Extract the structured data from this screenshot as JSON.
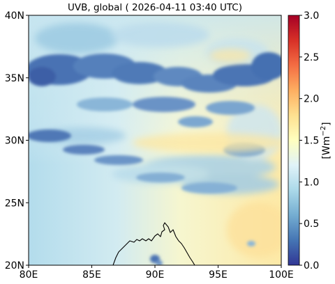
{
  "title": "UVB, global ( 2026-04-11 03:40 UTC)",
  "map": {
    "x_ticks": [
      "80E",
      "85E",
      "90E",
      "95E",
      "100E"
    ],
    "y_ticks": [
      "40N",
      "35N",
      "30N",
      "25N",
      "20N"
    ],
    "lon_range": [
      80,
      100
    ],
    "lat_range": [
      20,
      40
    ]
  },
  "colorbar": {
    "label": "[Wm",
    "label_exp": "−2",
    "label_close": "]",
    "ticks": [
      "3.0",
      "2.5",
      "2.0",
      "1.5",
      "1.0",
      "0.5",
      "0.0"
    ],
    "range": [
      0,
      3
    ],
    "colormap": "RdYlBu_r",
    "stops": [
      "#313695",
      "#4575b4",
      "#74add1",
      "#abd9e9",
      "#e0f3f8",
      "#ffffbf",
      "#fee090",
      "#fdae61",
      "#f46d43",
      "#d73027",
      "#a50026"
    ]
  }
}
